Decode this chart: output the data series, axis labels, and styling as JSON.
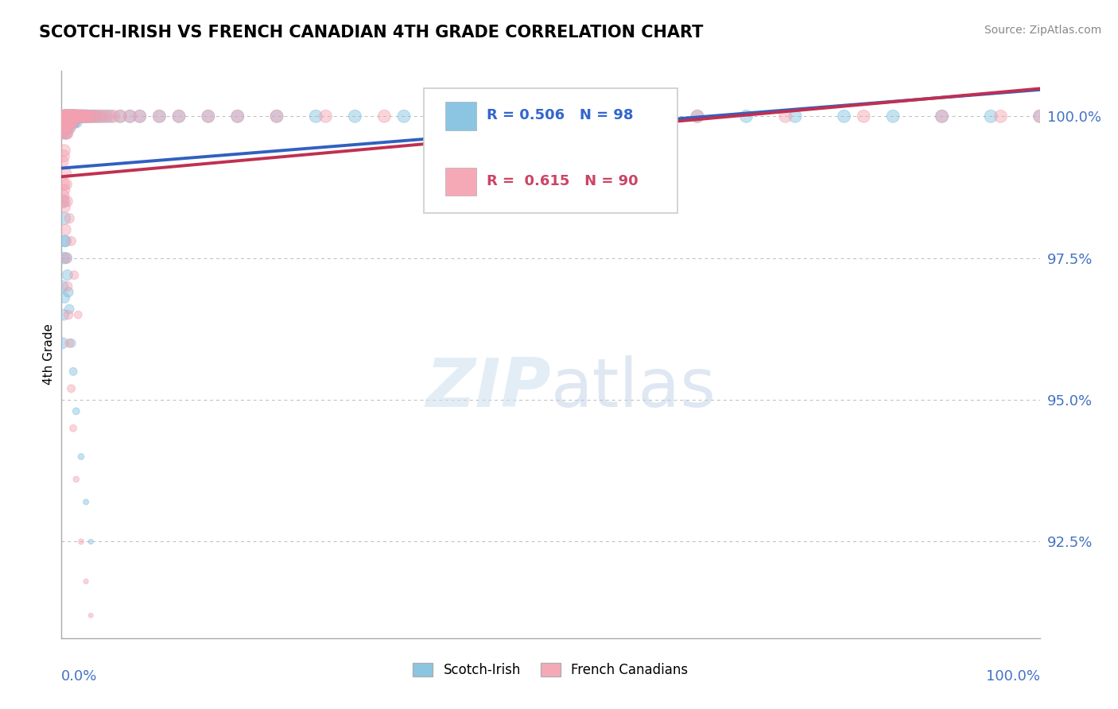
{
  "title": "SCOTCH-IRISH VS FRENCH CANADIAN 4TH GRADE CORRELATION CHART",
  "source": "Source: ZipAtlas.com",
  "ylabel": "4th Grade",
  "legend_label1": "Scotch-Irish",
  "legend_label2": "French Canadians",
  "R1": 0.506,
  "N1": 98,
  "R2": 0.615,
  "N2": 90,
  "color1": "#7fbfdf",
  "color2": "#f4a0b0",
  "line_color1": "#3060c0",
  "line_color2": "#c03050",
  "xmin": 0.0,
  "xmax": 1.0,
  "ymin": 0.908,
  "ymax": 1.008,
  "yticks": [
    0.925,
    0.95,
    0.975,
    1.0
  ],
  "ytick_labels": [
    "92.5%",
    "95.0%",
    "97.5%",
    "100.0%"
  ],
  "scotch_irish_x": [
    0.001,
    0.001,
    0.001,
    0.002,
    0.002,
    0.002,
    0.002,
    0.003,
    0.003,
    0.003,
    0.004,
    0.004,
    0.004,
    0.005,
    0.005,
    0.005,
    0.006,
    0.006,
    0.006,
    0.007,
    0.007,
    0.008,
    0.008,
    0.008,
    0.009,
    0.009,
    0.01,
    0.01,
    0.011,
    0.011,
    0.012,
    0.012,
    0.013,
    0.013,
    0.014,
    0.015,
    0.015,
    0.016,
    0.017,
    0.018,
    0.019,
    0.02,
    0.021,
    0.022,
    0.023,
    0.024,
    0.025,
    0.027,
    0.029,
    0.031,
    0.033,
    0.036,
    0.04,
    0.045,
    0.05,
    0.06,
    0.07,
    0.08,
    0.1,
    0.12,
    0.15,
    0.18,
    0.22,
    0.26,
    0.3,
    0.35,
    0.4,
    0.45,
    0.5,
    0.55,
    0.6,
    0.65,
    0.7,
    0.75,
    0.8,
    0.85,
    0.9,
    0.95,
    1.0,
    0.002,
    0.003,
    0.004,
    0.005,
    0.006,
    0.007,
    0.008,
    0.01,
    0.012,
    0.015,
    0.02,
    0.025,
    0.03,
    0.001,
    0.001,
    0.002,
    0.002,
    0.003,
    0.003
  ],
  "scotch_irish_y": [
    0.999,
    0.998,
    0.997,
    1.0,
    0.999,
    0.998,
    0.997,
    1.0,
    0.999,
    0.998,
    1.0,
    0.999,
    0.998,
    1.0,
    0.999,
    0.997,
    1.0,
    0.999,
    0.998,
    1.0,
    0.999,
    1.0,
    0.999,
    0.998,
    1.0,
    0.999,
    1.0,
    0.999,
    1.0,
    0.999,
    1.0,
    0.999,
    1.0,
    0.999,
    1.0,
    1.0,
    0.999,
    1.0,
    1.0,
    1.0,
    1.0,
    1.0,
    1.0,
    1.0,
    1.0,
    1.0,
    1.0,
    1.0,
    1.0,
    1.0,
    1.0,
    1.0,
    1.0,
    1.0,
    1.0,
    1.0,
    1.0,
    1.0,
    1.0,
    1.0,
    1.0,
    1.0,
    1.0,
    1.0,
    1.0,
    1.0,
    1.0,
    1.0,
    1.0,
    1.0,
    1.0,
    1.0,
    1.0,
    1.0,
    1.0,
    1.0,
    1.0,
    1.0,
    1.0,
    0.985,
    0.982,
    0.978,
    0.975,
    0.972,
    0.969,
    0.966,
    0.96,
    0.955,
    0.948,
    0.94,
    0.932,
    0.925,
    0.97,
    0.96,
    0.975,
    0.965,
    0.978,
    0.968
  ],
  "french_canadian_x": [
    0.001,
    0.001,
    0.002,
    0.002,
    0.002,
    0.003,
    0.003,
    0.003,
    0.004,
    0.004,
    0.004,
    0.005,
    0.005,
    0.006,
    0.006,
    0.006,
    0.007,
    0.007,
    0.008,
    0.008,
    0.009,
    0.009,
    0.01,
    0.01,
    0.011,
    0.012,
    0.012,
    0.013,
    0.014,
    0.015,
    0.016,
    0.017,
    0.018,
    0.019,
    0.02,
    0.022,
    0.024,
    0.026,
    0.028,
    0.031,
    0.034,
    0.038,
    0.042,
    0.047,
    0.053,
    0.06,
    0.07,
    0.08,
    0.1,
    0.12,
    0.15,
    0.18,
    0.22,
    0.27,
    0.33,
    0.4,
    0.48,
    0.56,
    0.65,
    0.74,
    0.82,
    0.9,
    0.96,
    1.0,
    0.002,
    0.003,
    0.004,
    0.005,
    0.006,
    0.007,
    0.008,
    0.01,
    0.012,
    0.015,
    0.02,
    0.025,
    0.03,
    0.001,
    0.001,
    0.002,
    0.002,
    0.003,
    0.003,
    0.004,
    0.005,
    0.006,
    0.008,
    0.01,
    0.013,
    0.017
  ],
  "french_canadian_y": [
    0.999,
    0.998,
    1.0,
    0.999,
    0.998,
    1.0,
    0.999,
    0.997,
    1.0,
    0.999,
    0.997,
    1.0,
    0.998,
    1.0,
    0.999,
    0.997,
    1.0,
    0.999,
    1.0,
    0.998,
    1.0,
    0.999,
    1.0,
    0.999,
    1.0,
    1.0,
    0.999,
    1.0,
    1.0,
    1.0,
    1.0,
    1.0,
    1.0,
    1.0,
    1.0,
    1.0,
    1.0,
    1.0,
    1.0,
    1.0,
    1.0,
    1.0,
    1.0,
    1.0,
    1.0,
    1.0,
    1.0,
    1.0,
    1.0,
    1.0,
    1.0,
    1.0,
    1.0,
    1.0,
    1.0,
    1.0,
    1.0,
    1.0,
    1.0,
    1.0,
    1.0,
    1.0,
    1.0,
    1.0,
    0.988,
    0.984,
    0.98,
    0.975,
    0.97,
    0.965,
    0.96,
    0.952,
    0.945,
    0.936,
    0.925,
    0.918,
    0.912,
    0.992,
    0.985,
    0.993,
    0.986,
    0.994,
    0.987,
    0.99,
    0.988,
    0.985,
    0.982,
    0.978,
    0.972,
    0.965
  ],
  "scotch_irish_sizes": [
    120,
    110,
    100,
    130,
    120,
    110,
    100,
    140,
    130,
    120,
    150,
    130,
    120,
    140,
    120,
    110,
    150,
    130,
    120,
    140,
    130,
    150,
    130,
    120,
    140,
    120,
    150,
    130,
    140,
    120,
    150,
    130,
    140,
    120,
    150,
    140,
    120,
    140,
    130,
    140,
    130,
    140,
    130,
    140,
    130,
    130,
    140,
    130,
    130,
    130,
    130,
    130,
    130,
    130,
    130,
    130,
    130,
    130,
    130,
    130,
    130,
    130,
    130,
    130,
    130,
    130,
    130,
    130,
    130,
    130,
    130,
    130,
    130,
    130,
    130,
    130,
    130,
    130,
    130,
    130,
    120,
    110,
    100,
    90,
    80,
    70,
    60,
    50,
    40,
    30,
    25,
    20,
    110,
    100,
    110,
    100,
    100,
    90
  ],
  "french_sizes": [
    120,
    110,
    130,
    120,
    110,
    140,
    130,
    110,
    150,
    130,
    120,
    140,
    120,
    150,
    130,
    110,
    140,
    120,
    150,
    120,
    140,
    120,
    150,
    130,
    140,
    150,
    130,
    140,
    130,
    140,
    130,
    130,
    130,
    130,
    140,
    130,
    130,
    130,
    130,
    130,
    130,
    130,
    130,
    130,
    130,
    130,
    130,
    130,
    130,
    130,
    130,
    130,
    130,
    130,
    130,
    130,
    130,
    130,
    130,
    130,
    130,
    130,
    130,
    130,
    120,
    110,
    100,
    90,
    80,
    70,
    60,
    50,
    40,
    30,
    25,
    20,
    18,
    120,
    110,
    120,
    110,
    110,
    100,
    110,
    100,
    90,
    80,
    70,
    60,
    50
  ]
}
